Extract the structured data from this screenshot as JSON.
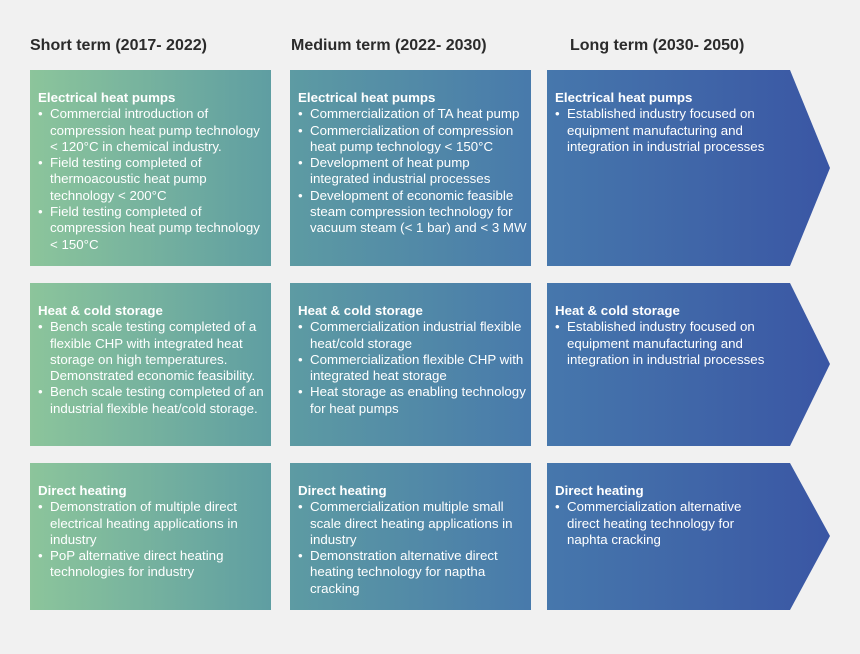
{
  "columns": [
    {
      "header": "Short term (2017- 2022)",
      "cells": [
        {
          "title": "Electrical heat pumps",
          "items": [
            "Commercial introduction of compression heat pump technology < 120°C in chemical industry.",
            "Field testing completed of thermoacoustic heat pump technology < 200°C",
            "Field testing completed of compression heat pump technology < 150°C"
          ]
        },
        {
          "title": "Heat & cold storage",
          "items": [
            "Bench scale testing completed of a flexible CHP with integrated heat storage on high temperatures. Demonstrated economic feasibility.",
            "Bench scale testing completed of an industrial flexible heat/cold storage."
          ]
        },
        {
          "title": "Direct heating",
          "items": [
            "Demonstration of multiple direct electrical heating applications in industry",
            "PoP alternative direct heating technologies for industry"
          ]
        }
      ]
    },
    {
      "header": "Medium term (2022- 2030)",
      "cells": [
        {
          "title": "Electrical heat pumps",
          "items": [
            "Commercialization of TA heat pump",
            "Commercialization of compression heat pump technology < 150°C",
            "Development of heat pump integrated industrial processes",
            "Development of economic feasible steam compression technology for vacuum steam (< 1 bar) and < 3 MW"
          ]
        },
        {
          "title": "Heat & cold storage",
          "items": [
            "Commercialization  industrial flexible heat/cold storage",
            "Commercialization  flexible CHP with integrated heat storage",
            "Heat storage as enabling technology for heat pumps"
          ]
        },
        {
          "title": "Direct heating",
          "items": [
            "Commercialization multiple small scale direct heating applications in industry",
            "Demonstration alternative direct heating technology for naptha cracking"
          ]
        }
      ]
    },
    {
      "header": "Long term (2030- 2050)",
      "cells": [
        {
          "title": "Electrical heat pumps",
          "items": [
            "Established industry focused on equipment manufacturing and integration in industrial processes"
          ]
        },
        {
          "title": "Heat & cold storage",
          "items": [
            "Established industry focused on equipment manufacturing and integration in industrial processes"
          ]
        },
        {
          "title": "Direct heating",
          "items": [
            "Commercialization alternative direct heating technology for naphta cracking"
          ]
        }
      ]
    }
  ]
}
